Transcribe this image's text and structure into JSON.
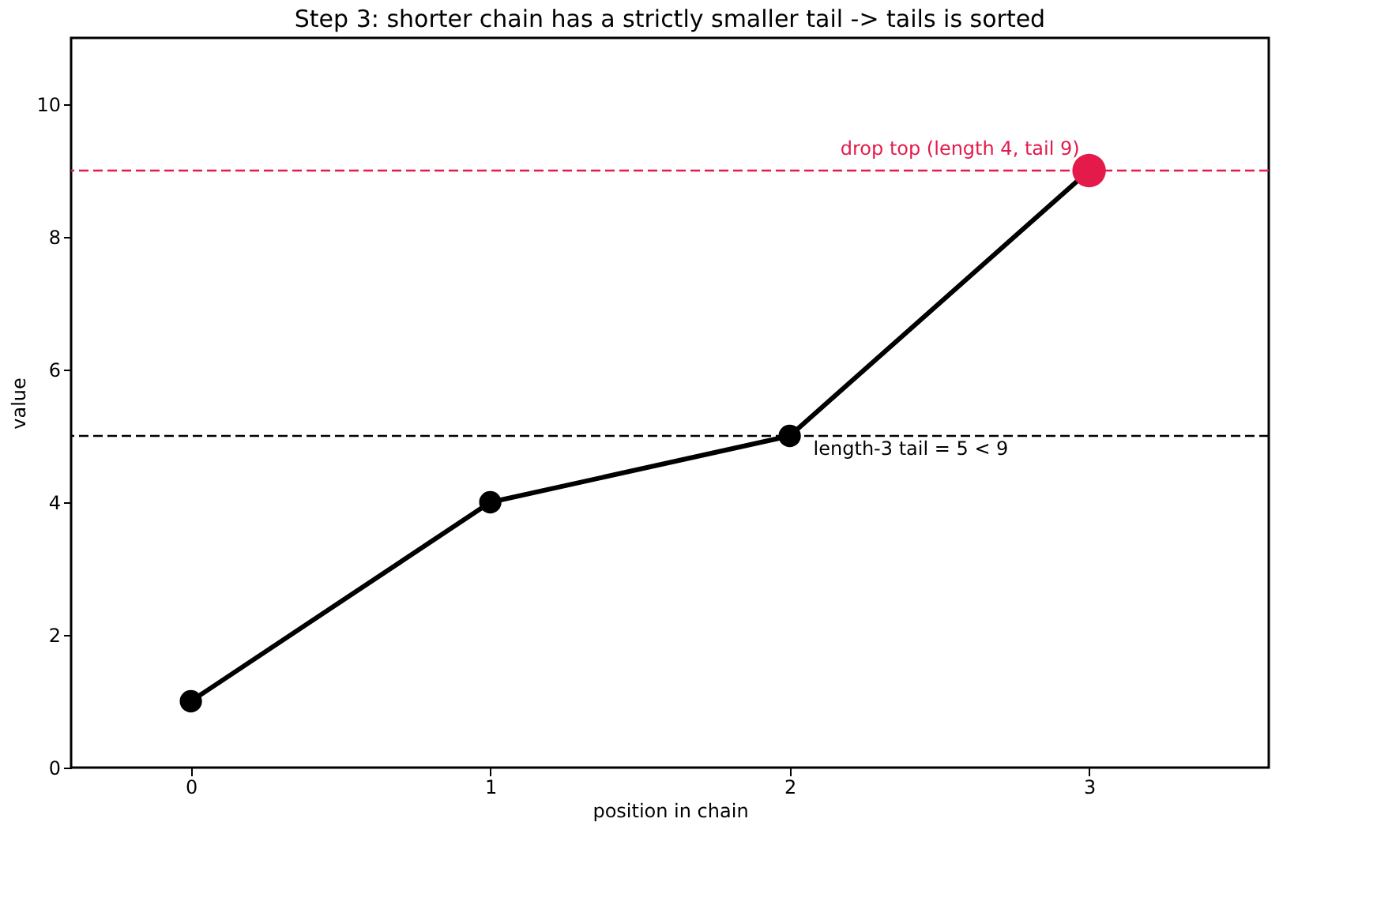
{
  "chart_data": {
    "type": "line",
    "title": "Step 3: shorter chain has a strictly smaller tail -> tails is sorted",
    "xlabel": "position in chain",
    "ylabel": "value",
    "x": [
      0,
      1,
      2,
      3
    ],
    "series": [
      {
        "color": "#000000",
        "values": [
          1,
          4,
          5,
          9
        ],
        "marker": "circle"
      },
      {
        "type": "scatter",
        "color": "#e31a4a",
        "x": [
          3
        ],
        "values": [
          9
        ],
        "marker": "circle"
      }
    ],
    "ref_lines": [
      {
        "axis": "y",
        "value": 9,
        "label": "drop top (length 4, tail 9)",
        "color": "#e31a4a",
        "line_style": "dashed"
      },
      {
        "axis": "y",
        "value": 5,
        "label": "length-3 tail = 5 < 9",
        "color": "#000000",
        "line_style": "dashed"
      }
    ],
    "xlim": [
      -0.4,
      3.6
    ],
    "xticks": [
      0,
      1,
      2,
      3
    ],
    "ylim": [
      0,
      11
    ],
    "yticks": [
      0,
      2,
      4,
      6,
      8,
      10
    ],
    "grid": false
  }
}
